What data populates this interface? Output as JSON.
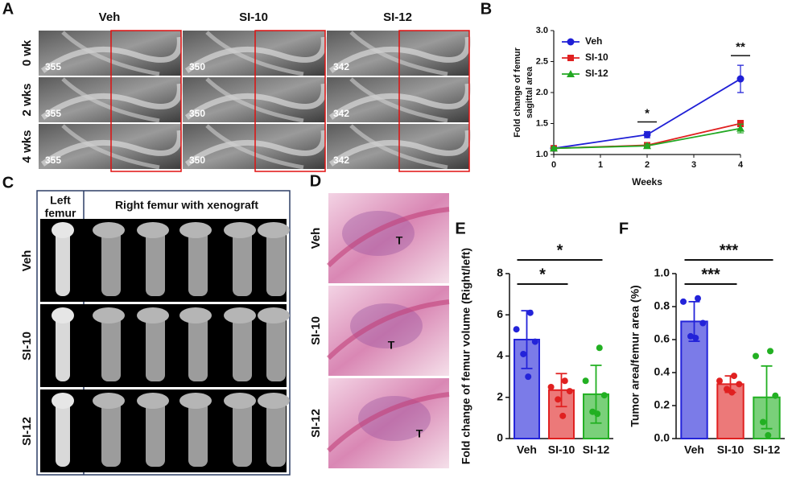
{
  "panel_a": {
    "label": "A",
    "columns": [
      "Veh",
      "SI-10",
      "SI-12"
    ],
    "rows": [
      "0 wk",
      "2 wks",
      "4 wks"
    ],
    "ids": [
      [
        "355",
        "350",
        "342"
      ],
      [
        "355",
        "350",
        "342"
      ],
      [
        "355",
        "350",
        "342"
      ]
    ]
  },
  "panel_c": {
    "label": "C",
    "left_header": [
      "Left",
      "femur"
    ],
    "right_header": "Right femur with xenograft",
    "rows": [
      "Veh",
      "SI-10",
      "SI-12"
    ]
  },
  "panel_d": {
    "label": "D",
    "rows": [
      "Veh",
      "SI-10",
      "SI-12"
    ],
    "tumor_labels": [
      "T",
      "T",
      "T"
    ]
  },
  "chart_data": [
    {
      "type": "line",
      "label": "B",
      "x": [
        0,
        2,
        4
      ],
      "x_label": "Weeks",
      "y_label": [
        "Fold change of femur",
        "sagittal area"
      ],
      "xlim": [
        0,
        4
      ],
      "xticks": [
        0,
        1,
        2,
        3,
        4
      ],
      "ylim": [
        1.0,
        3.0
      ],
      "yticks": [
        {
          "value": 1.0,
          "label": "1.0"
        },
        {
          "value": 1.5,
          "label": "1.5"
        },
        {
          "value": 2.0,
          "label": "2.0"
        },
        {
          "value": 2.5,
          "label": "2.5"
        },
        {
          "value": 3.0,
          "label": "3.0"
        }
      ],
      "series": [
        {
          "name": "Veh",
          "color": "#1f1fd6",
          "marker": "circle",
          "values": [
            1.1,
            1.32,
            2.22
          ],
          "errors": [
            0.02,
            0.05,
            0.22
          ]
        },
        {
          "name": "SI-10",
          "color": "#e02020",
          "marker": "square",
          "values": [
            1.1,
            1.15,
            1.5
          ],
          "errors": [
            0.02,
            0.03,
            0.05
          ]
        },
        {
          "name": "SI-12",
          "color": "#22a822",
          "marker": "triangle",
          "values": [
            1.1,
            1.14,
            1.42
          ],
          "errors": [
            0.02,
            0.03,
            0.07
          ]
        }
      ],
      "annotations": [
        {
          "text": "*",
          "x": 2
        },
        {
          "text": "**",
          "x": 4
        }
      ]
    },
    {
      "type": "bar",
      "label": "E",
      "y_label": "Fold change of femur volume (Right/left)",
      "categories": [
        "Veh",
        "SI-10",
        "SI-12"
      ],
      "values": [
        4.8,
        2.35,
        2.15
      ],
      "errors": [
        1.4,
        0.8,
        1.4
      ],
      "points": [
        [
          6.1,
          5.3,
          4.7,
          4.1,
          3.0
        ],
        [
          2.8,
          2.5,
          2.3,
          1.9,
          1.1
        ],
        [
          4.4,
          2.8,
          2.1,
          1.3,
          1.2
        ]
      ],
      "colors": [
        "#2323d9",
        "#e02020",
        "#22b022"
      ],
      "ylim": [
        0,
        8
      ],
      "yticks": [
        0,
        2,
        4,
        6,
        8
      ],
      "annotations": [
        {
          "text": "*",
          "between": [
            "Veh",
            "SI-12"
          ]
        },
        {
          "text": "*",
          "between": [
            "Veh",
            "SI-10"
          ]
        }
      ]
    },
    {
      "type": "bar",
      "label": "F",
      "y_label": "Tumor area/femur area (%)",
      "categories": [
        "Veh",
        "SI-10",
        "SI-12"
      ],
      "values": [
        0.71,
        0.33,
        0.25
      ],
      "errors": [
        0.12,
        0.05,
        0.19
      ],
      "points": [
        [
          0.85,
          0.83,
          0.7,
          0.62,
          0.61
        ],
        [
          0.38,
          0.35,
          0.33,
          0.3,
          0.28
        ],
        [
          0.53,
          0.5,
          0.26,
          0.1,
          0.02
        ]
      ],
      "colors": [
        "#2323d9",
        "#e02020",
        "#22b022"
      ],
      "ylim": [
        0,
        1.0
      ],
      "yticks": [
        {
          "value": 0,
          "label": "0.0"
        },
        {
          "value": 0.2,
          "label": "0.2"
        },
        {
          "value": 0.4,
          "label": "0.4"
        },
        {
          "value": 0.6,
          "label": "0.6"
        },
        {
          "value": 0.8,
          "label": "0.8"
        },
        {
          "value": 1.0,
          "label": "1.0"
        }
      ],
      "annotations": [
        {
          "text": "***",
          "between": [
            "Veh",
            "SI-12"
          ]
        },
        {
          "text": "***",
          "between": [
            "Veh",
            "SI-10"
          ]
        }
      ]
    }
  ]
}
